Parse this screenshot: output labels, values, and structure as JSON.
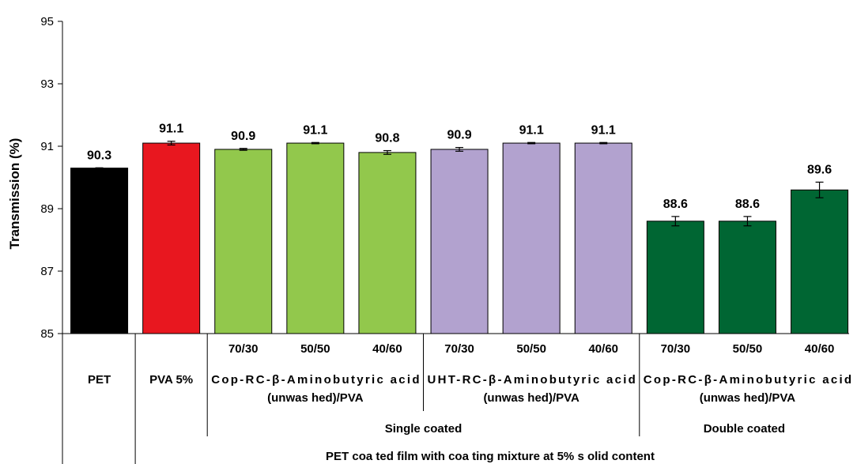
{
  "chart_data": {
    "type": "bar",
    "ylabel": "Transmission (%)",
    "ylim": [
      85,
      95
    ],
    "yticks": [
      85,
      87,
      89,
      91,
      93,
      95
    ],
    "grid": false,
    "categories": [
      "PET",
      "PVA 5%",
      "70/30",
      "50/50",
      "40/60",
      "70/30",
      "50/50",
      "40/60",
      "70/30",
      "50/50",
      "40/60"
    ],
    "values": [
      90.3,
      91.1,
      90.9,
      91.1,
      90.8,
      90.9,
      91.1,
      91.1,
      88.6,
      88.6,
      89.6
    ],
    "data_labels": [
      "90.3",
      "91.1",
      "90.9",
      "91.1",
      "90.8",
      "90.9",
      "91.1",
      "91.1",
      "88.6",
      "88.6",
      "89.6"
    ],
    "errors": [
      0.01,
      0.06,
      0.03,
      0.02,
      0.06,
      0.06,
      0.02,
      0.02,
      0.15,
      0.15,
      0.25
    ],
    "colors": [
      "#000000",
      "#e8171f",
      "#92c84c",
      "#92c84c",
      "#92c84c",
      "#b2a2cf",
      "#b2a2cf",
      "#b2a2cf",
      "#006633",
      "#006633",
      "#006633"
    ],
    "group_labels": [
      {
        "line1": "Cop-RC-β-Aminobutyric   acid",
        "line2": "(unwas hed)/PVA"
      },
      {
        "line1": "UHT-RC-β-Aminobutyric   acid",
        "line2": "(unwas hed)/PVA"
      },
      {
        "line1": "Cop-RC-β-Aminobutyric   acid",
        "line2": "(unwas hed)/PVA"
      }
    ],
    "coating_labels": [
      "Single coated",
      "Double coated"
    ],
    "xlabel": "PET coa ted film with coa ting mixture at 5% s olid content"
  }
}
